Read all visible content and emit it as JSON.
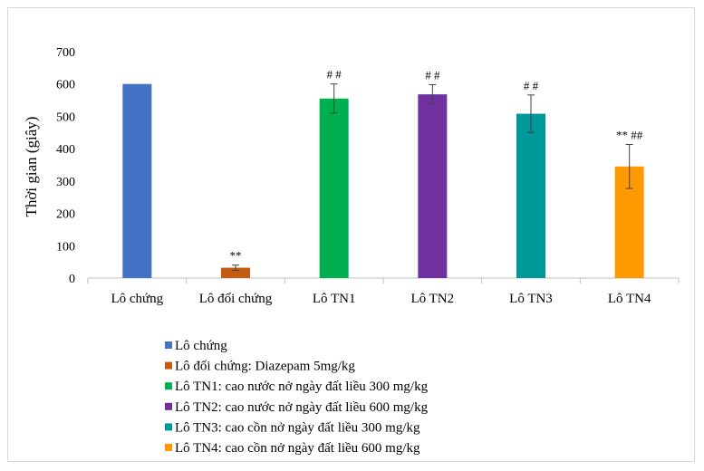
{
  "chart_data": {
    "type": "bar",
    "title": "",
    "xlabel": "",
    "ylabel": "Thời gian (giây)",
    "ylim": [
      0,
      700
    ],
    "yticks": [
      0,
      100,
      200,
      300,
      400,
      500,
      600,
      700
    ],
    "grid": false,
    "legend_position": "bottom",
    "categories": [
      "Lô chứng",
      "Lô đối chứng",
      "Lô TN1",
      "Lô TN2",
      "Lô TN3",
      "Lô TN4"
    ],
    "values": [
      600,
      32,
      555,
      568,
      508,
      345
    ],
    "errors": [
      0,
      8,
      45,
      30,
      58,
      68
    ],
    "annotations": [
      "",
      "**",
      "# #",
      "# #",
      "# #",
      "** ##"
    ],
    "colors": [
      "#4472C4",
      "#C55A11",
      "#00B050",
      "#7030A0",
      "#009999",
      "#FF9900"
    ],
    "legend": [
      "Lô chứng",
      "Lô đối chứng: Diazepam  5mg/kg",
      "Lô TN1: cao nước nở ngày đất liều  300 mg/kg",
      "Lô TN2: cao nước nở ngày đất liều  600 mg/kg",
      "Lô TN3: cao cồn nở ngày đất liều  300 mg/kg",
      "Lô TN4: cao cồn nở ngày đất liều  600 mg/kg"
    ]
  }
}
